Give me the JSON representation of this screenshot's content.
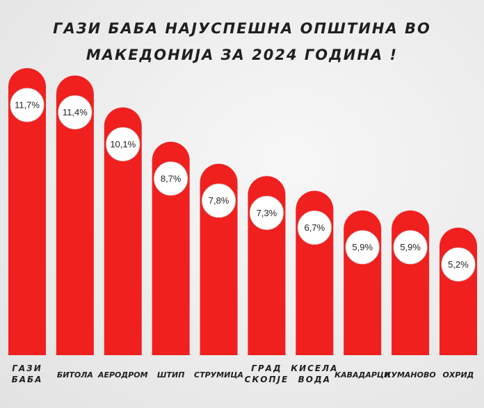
{
  "title": {
    "line1": "ГАЗИ БАБА НАЈУСПЕШНА ОПШТИНА ВО",
    "line2": "МАКЕДОНИЈА ЗА 2024 ГОДИНА !"
  },
  "colors": {
    "bar": "#f0201f",
    "circle": "#ffffff",
    "text": "#1f1f1f"
  },
  "chart_data": {
    "type": "bar",
    "categories": [
      [
        "ГАЗИ",
        "БАБА"
      ],
      [
        "БИТОЛА"
      ],
      [
        "АЕРОДРОМ"
      ],
      [
        "ШТИП"
      ],
      [
        "СТРУМИЦА"
      ],
      [
        "ГРАД",
        "СКОПЈЕ"
      ],
      [
        "КИСЕЛА",
        "ВОДА"
      ],
      [
        "КАВАДАРЦИ"
      ],
      [
        "КУМАНОВО"
      ],
      [
        "ОХРИД"
      ]
    ],
    "values": [
      11.7,
      11.4,
      10.1,
      8.7,
      7.8,
      7.3,
      6.7,
      5.9,
      5.9,
      5.2
    ],
    "value_labels": [
      "11,7%",
      "11,4%",
      "10,1%",
      "8,7%",
      "7,8%",
      "7,3%",
      "6,7%",
      "5,9%",
      "5,9%",
      "5,2%"
    ],
    "grid": false,
    "legend": "none",
    "axes_visible": false
  }
}
